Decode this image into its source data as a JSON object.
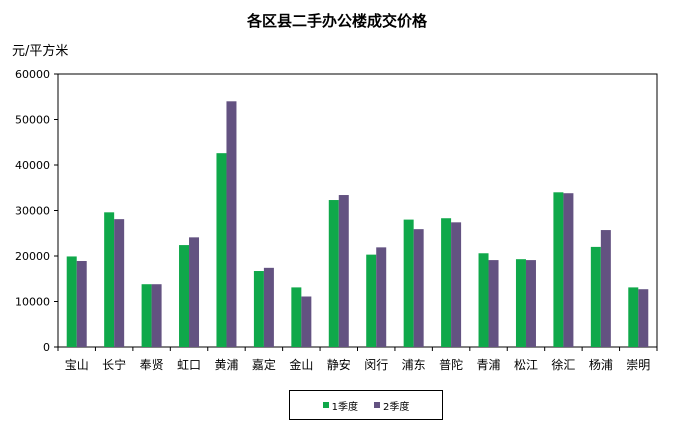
{
  "chart_data": {
    "type": "bar",
    "title": "各区县二手办公楼成交价格",
    "ylabel": "元/平方米",
    "xlabel": "",
    "ylim": [
      0,
      60000
    ],
    "yticks": [
      "0",
      "10000",
      "20000",
      "30000",
      "40000",
      "50000",
      "60000"
    ],
    "categories": [
      "宝山",
      "长宁",
      "奉贤",
      "虹口",
      "黄浦",
      "嘉定",
      "金山",
      "静安",
      "闵行",
      "浦东",
      "普陀",
      "青浦",
      "松江",
      "徐汇",
      "杨浦",
      "崇明"
    ],
    "series": [
      {
        "name": "1季度",
        "color": "#0fa84a",
        "values": [
          19900,
          29600,
          13800,
          22400,
          42600,
          16700,
          13100,
          32300,
          20300,
          28000,
          28300,
          20600,
          19300,
          34000,
          22000,
          13100
        ]
      },
      {
        "name": "2季度",
        "color": "#635281",
        "values": [
          18900,
          28100,
          13800,
          24100,
          54000,
          17400,
          11100,
          33400,
          21900,
          25900,
          27400,
          19100,
          19100,
          33800,
          25700,
          12700
        ]
      }
    ],
    "grid": false,
    "legend_position": "bottom"
  }
}
